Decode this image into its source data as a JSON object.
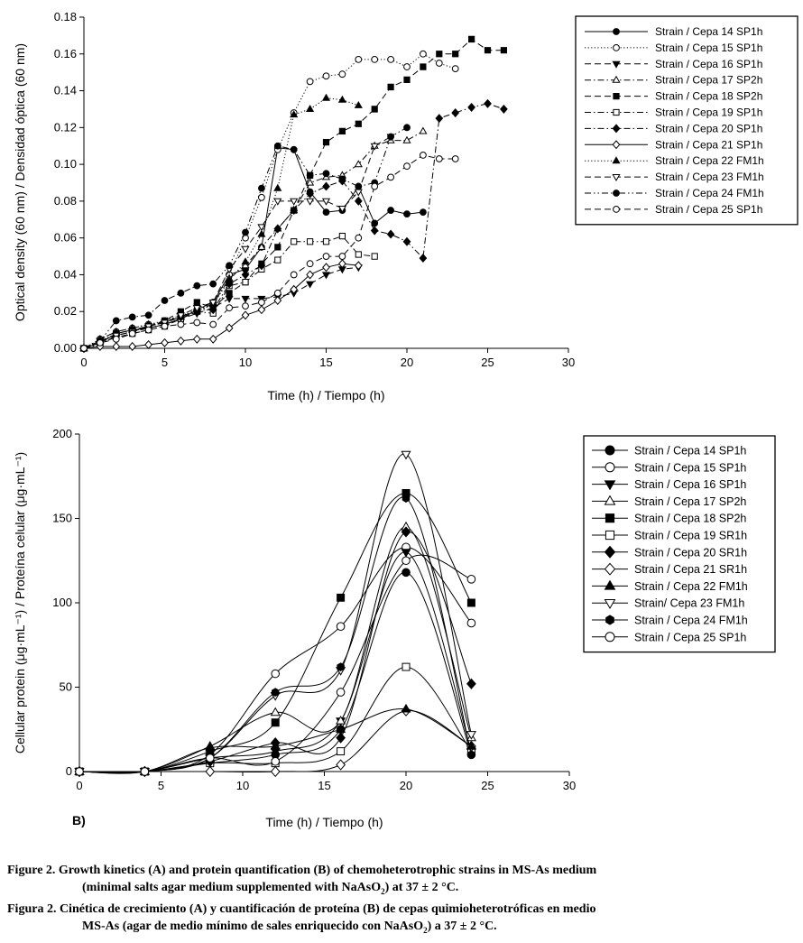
{
  "colors": {
    "ink": "#000000",
    "background": "#ffffff"
  },
  "chart_data": [
    {
      "panel": "A",
      "type": "line",
      "title": "",
      "xlabel": "Time (h) / Tiempo (h)",
      "ylabel": "Optical density  (60 nm) / Densidad óptica (60 nm)",
      "xlim": [
        0,
        30
      ],
      "ylim": [
        0,
        0.18
      ],
      "xticks": [
        0,
        5,
        10,
        15,
        20,
        25,
        30
      ],
      "xtick_labels": [
        "0",
        "5",
        "10",
        "15",
        "20",
        "25",
        "30"
      ],
      "yticks": [
        0,
        0.02,
        0.04,
        0.06,
        0.08,
        0.1,
        0.12,
        0.14,
        0.16,
        0.18
      ],
      "ytick_labels": [
        "0.00",
        "0.02",
        "0.04",
        "0.06",
        "0.08",
        "0.10",
        "0.12",
        "0.14",
        "0.16",
        "0.18"
      ],
      "grid": false,
      "legend_position": "top-right",
      "series": [
        {
          "name": "Strain / Cepa 14 SP1h",
          "marker": "circle",
          "filled": true,
          "dash": "solid",
          "x": [
            0,
            1,
            2,
            3,
            4,
            5,
            6,
            7,
            8,
            9,
            10,
            11,
            12,
            13,
            14,
            15,
            16,
            17,
            18,
            19,
            20,
            21
          ],
          "y": [
            0.0,
            0.003,
            0.008,
            0.01,
            0.011,
            0.013,
            0.016,
            0.021,
            0.025,
            0.04,
            0.043,
            0.055,
            0.109,
            0.108,
            0.085,
            0.074,
            0.075,
            0.088,
            0.068,
            0.075,
            0.073,
            0.074
          ]
        },
        {
          "name": "Strain / Cepa 15 SP1h",
          "marker": "circle",
          "filled": false,
          "dash": "dot",
          "x": [
            0,
            1,
            2,
            3,
            4,
            5,
            6,
            7,
            8,
            9,
            10,
            11,
            12,
            13,
            14,
            15,
            16,
            17,
            18,
            19,
            20,
            21,
            22,
            23
          ],
          "y": [
            0.0,
            0.005,
            0.009,
            0.011,
            0.013,
            0.015,
            0.018,
            0.02,
            0.024,
            0.04,
            0.06,
            0.082,
            0.108,
            0.128,
            0.145,
            0.148,
            0.149,
            0.157,
            0.157,
            0.157,
            0.153,
            0.16,
            0.155,
            0.152
          ]
        },
        {
          "name": "Strain / Cepa 16 SP1h",
          "marker": "triangle-down",
          "filled": true,
          "dash": "dash",
          "x": [
            0,
            1,
            2,
            3,
            4,
            5,
            6,
            7,
            8,
            9,
            10,
            11,
            12,
            13,
            14,
            15,
            16,
            17
          ],
          "y": [
            0.0,
            0.004,
            0.007,
            0.009,
            0.011,
            0.013,
            0.016,
            0.019,
            0.022,
            0.027,
            0.027,
            0.027,
            0.028,
            0.03,
            0.035,
            0.04,
            0.043,
            0.044
          ]
        },
        {
          "name": "Strain / Cepa 17 SP2h",
          "marker": "triangle-up",
          "filled": false,
          "dash": "dashdot",
          "x": [
            0,
            1,
            2,
            3,
            4,
            5,
            6,
            7,
            8,
            9,
            10,
            11,
            12,
            13,
            14,
            15,
            16,
            17,
            18,
            19,
            20,
            21
          ],
          "y": [
            0.0,
            0.005,
            0.009,
            0.011,
            0.013,
            0.014,
            0.017,
            0.021,
            0.024,
            0.038,
            0.045,
            0.055,
            0.065,
            0.075,
            0.09,
            0.093,
            0.094,
            0.1,
            0.11,
            0.113,
            0.113,
            0.118
          ]
        },
        {
          "name": "Strain / Cepa 18 SP2h",
          "marker": "square",
          "filled": true,
          "dash": "dash",
          "x": [
            0,
            1,
            2,
            3,
            4,
            5,
            6,
            7,
            8,
            9,
            10,
            11,
            12,
            13,
            14,
            15,
            16,
            17,
            18,
            19,
            20,
            21,
            22,
            23,
            24,
            25,
            26
          ],
          "y": [
            0.0,
            0.003,
            0.008,
            0.01,
            0.012,
            0.015,
            0.02,
            0.025,
            0.022,
            0.03,
            0.036,
            0.046,
            0.055,
            0.075,
            0.094,
            0.112,
            0.118,
            0.122,
            0.13,
            0.142,
            0.146,
            0.153,
            0.16,
            0.16,
            0.168,
            0.162,
            0.162
          ]
        },
        {
          "name": "Strain / Cepa 19 SP1h",
          "marker": "square",
          "filled": false,
          "dash": "dashdot",
          "x": [
            0,
            1,
            2,
            3,
            4,
            5,
            6,
            7,
            8,
            9,
            10,
            11,
            12,
            13,
            14,
            15,
            16,
            17,
            18
          ],
          "y": [
            0.0,
            0.003,
            0.006,
            0.008,
            0.01,
            0.012,
            0.016,
            0.02,
            0.019,
            0.034,
            0.036,
            0.043,
            0.048,
            0.058,
            0.058,
            0.058,
            0.061,
            0.051,
            0.05
          ]
        },
        {
          "name": "Strain / Cepa 20 SP1h",
          "marker": "diamond",
          "filled": true,
          "dash": "dashdot",
          "x": [
            0,
            1,
            2,
            3,
            4,
            5,
            6,
            7,
            8,
            9,
            10,
            11,
            12,
            13,
            14,
            15,
            16,
            17,
            18,
            19,
            20,
            21,
            22,
            23,
            24,
            25,
            26
          ],
          "y": [
            0.0,
            0.002,
            0.007,
            0.009,
            0.012,
            0.014,
            0.017,
            0.021,
            0.021,
            0.035,
            0.04,
            0.045,
            0.065,
            0.075,
            0.084,
            0.088,
            0.091,
            0.08,
            0.064,
            0.062,
            0.058,
            0.049,
            0.125,
            0.128,
            0.131,
            0.133,
            0.13
          ]
        },
        {
          "name": "Strain / Cepa 21 SP1h",
          "marker": "diamond",
          "filled": false,
          "dash": "solid",
          "x": [
            0,
            1,
            2,
            3,
            4,
            5,
            6,
            7,
            8,
            9,
            10,
            11,
            12,
            13,
            14,
            15,
            16,
            17
          ],
          "y": [
            0.0,
            0.001,
            0.001,
            0.001,
            0.002,
            0.003,
            0.004,
            0.005,
            0.005,
            0.011,
            0.018,
            0.021,
            0.026,
            0.032,
            0.04,
            0.044,
            0.046,
            0.045
          ]
        },
        {
          "name": "Strain / Cepa 22 FM1h",
          "marker": "triangle-up",
          "filled": true,
          "dash": "dot",
          "x": [
            0,
            1,
            2,
            3,
            4,
            5,
            6,
            7,
            8,
            9,
            10,
            11,
            12,
            13,
            14,
            15,
            16,
            17
          ],
          "y": [
            0.0,
            0.004,
            0.008,
            0.01,
            0.012,
            0.014,
            0.017,
            0.02,
            0.024,
            0.037,
            0.047,
            0.062,
            0.087,
            0.127,
            0.13,
            0.136,
            0.135,
            0.132
          ]
        },
        {
          "name": "Strain / Cepa 23 FM1h",
          "marker": "triangle-down",
          "filled": false,
          "dash": "dash",
          "x": [
            0,
            1,
            2,
            3,
            4,
            5,
            6,
            7,
            8,
            9,
            10,
            11,
            12,
            13,
            14,
            15,
            16,
            17,
            18,
            19
          ],
          "y": [
            0.0,
            0.004,
            0.007,
            0.009,
            0.012,
            0.014,
            0.018,
            0.022,
            0.025,
            0.043,
            0.054,
            0.066,
            0.08,
            0.08,
            0.08,
            0.08,
            0.076,
            0.085,
            0.11,
            0.115
          ]
        },
        {
          "name": "Strain / Cepa 24 FM1h",
          "marker": "circle",
          "filled": true,
          "dash": "dashdotdot",
          "x": [
            0,
            1,
            2,
            3,
            4,
            5,
            6,
            7,
            8,
            9,
            10,
            11,
            12,
            13,
            14,
            15,
            16,
            17,
            18,
            19,
            20
          ],
          "y": [
            0.0,
            0.004,
            0.015,
            0.017,
            0.018,
            0.026,
            0.03,
            0.034,
            0.035,
            0.045,
            0.063,
            0.087,
            0.11,
            0.108,
            0.094,
            0.095,
            0.092,
            0.088,
            0.09,
            0.115,
            0.12
          ]
        },
        {
          "name": "Strain / Cepa 25 SP1h",
          "marker": "circle",
          "filled": false,
          "dash": "dash",
          "x": [
            0,
            1,
            2,
            3,
            4,
            5,
            6,
            7,
            8,
            9,
            10,
            11,
            12,
            13,
            14,
            15,
            16,
            17,
            18,
            19,
            20,
            21,
            22,
            23
          ],
          "y": [
            0.0,
            0.003,
            0.005,
            0.008,
            0.01,
            0.012,
            0.013,
            0.014,
            0.013,
            0.022,
            0.023,
            0.025,
            0.03,
            0.04,
            0.046,
            0.05,
            0.05,
            0.06,
            0.088,
            0.093,
            0.099,
            0.105,
            0.103,
            0.103
          ]
        }
      ]
    },
    {
      "panel": "B",
      "type": "line",
      "title": "",
      "panel_label": "B)",
      "xlabel": "Time (h) / Tiempo (h)",
      "ylabel": "Cellular protein (μg·mL⁻¹) / Proteína celular (μg·mL⁻¹)",
      "xlim": [
        0,
        30
      ],
      "ylim": [
        0,
        200
      ],
      "xticks": [
        0,
        5,
        10,
        15,
        20,
        25,
        30
      ],
      "xtick_labels": [
        "0",
        "5",
        "10",
        "15",
        "20",
        "25",
        "30"
      ],
      "yticks": [
        0,
        50,
        100,
        150,
        200
      ],
      "ytick_labels": [
        "0",
        "50",
        "100",
        "150",
        "200"
      ],
      "grid": false,
      "legend_position": "top-right",
      "x": [
        0,
        4,
        8,
        12,
        16,
        20,
        24
      ],
      "series": [
        {
          "name": "Strain / Cepa 14 SP1h",
          "marker": "circle",
          "filled": true,
          "values": [
            0,
            0,
            5,
            10,
            25,
            118,
            10
          ]
        },
        {
          "name": "Strain / Cepa 15 SP1h",
          "marker": "circle",
          "filled": false,
          "values": [
            0,
            0,
            10,
            58,
            86,
            133,
            88
          ]
        },
        {
          "name": "Strain / Cepa 16 SP1h",
          "marker": "triangle-down",
          "filled": true,
          "values": [
            0,
            0,
            8,
            12,
            30,
            130,
            12
          ]
        },
        {
          "name": "Strain / Cepa 17 SP2h",
          "marker": "triangle-up",
          "filled": false,
          "values": [
            0,
            0,
            15,
            35,
            30,
            145,
            20
          ]
        },
        {
          "name": "Strain / Cepa 18 SP2h",
          "marker": "square",
          "filled": true,
          "values": [
            0,
            0,
            12,
            29,
            103,
            165,
            100
          ]
        },
        {
          "name": "Strain / Cepa 19 SR1h",
          "marker": "square",
          "filled": false,
          "values": [
            0,
            0,
            5,
            5,
            12,
            62,
            12
          ]
        },
        {
          "name": "Strain / Cepa 20 SR1h",
          "marker": "diamond",
          "filled": true,
          "values": [
            0,
            0,
            6,
            17,
            20,
            142,
            52
          ]
        },
        {
          "name": "Strain / Cepa 21 SR1h",
          "marker": "diamond",
          "filled": false,
          "values": [
            0,
            0,
            0,
            0,
            4,
            36,
            15
          ]
        },
        {
          "name": "Strain / Cepa 22 FM1h",
          "marker": "triangle-up",
          "filled": true,
          "values": [
            0,
            0,
            14,
            15,
            25,
            37,
            15
          ]
        },
        {
          "name": "Strain/ Cepa 23 FM1h",
          "marker": "triangle-down",
          "filled": false,
          "values": [
            0,
            0,
            8,
            45,
            60,
            188,
            22
          ]
        },
        {
          "name": "Strain / Cepa 24 FM1h",
          "marker": "hexagon",
          "filled": true,
          "values": [
            0,
            0,
            8,
            47,
            62,
            162,
            10
          ]
        },
        {
          "name": "Strain / Cepa 25 SP1h",
          "marker": "circle",
          "filled": false,
          "values": [
            0,
            0,
            8,
            6,
            47,
            125,
            114
          ]
        }
      ]
    }
  ],
  "captions": {
    "en_line1": "Figure 2. Growth kinetics (A) and protein quantification (B) of chemoheterotrophic strains in MS-As medium",
    "en_line2_a": "(minimal salts agar medium supplemented with NaAsO",
    "en_line2_sub": "2",
    "en_line2_b": ")  at 37 ± 2 °C.",
    "es_line1": "Figura 2. Cinética de crecimiento (A) y cuantificación de proteína (B) de cepas quimioheterotróficas en medio",
    "es_line2_a": "MS-As (agar de medio mínimo de sales enriquecido con NaAsO",
    "es_line2_sub": "2",
    "es_line2_b": ")  a 37 ± 2 °C."
  }
}
